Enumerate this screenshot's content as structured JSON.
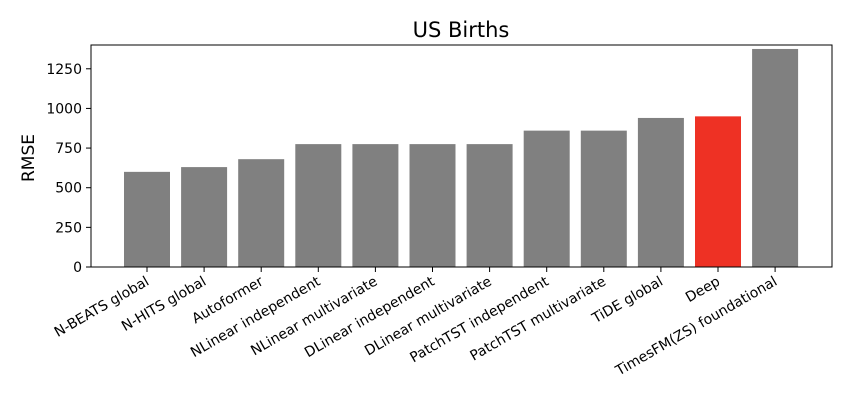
{
  "chart_data": {
    "type": "bar",
    "title": "US Births",
    "xlabel": "",
    "ylabel": "RMSE",
    "ylim": [
      0,
      1400
    ],
    "yticks": [
      0,
      250,
      500,
      750,
      1000,
      1250
    ],
    "categories": [
      "N-BEATS global",
      "N-HITS global",
      "Autoformer",
      "NLinear independent",
      "NLinear multivariate",
      "DLinear independent",
      "DLinear multivariate",
      "PatchTST independent",
      "PatchTST multivariate",
      "TiDE global",
      "Deep",
      "TimesFM(ZS) foundational"
    ],
    "values": [
      600,
      630,
      680,
      775,
      775,
      775,
      775,
      860,
      860,
      940,
      950,
      1375
    ],
    "colors": [
      "#808080",
      "#808080",
      "#808080",
      "#808080",
      "#808080",
      "#808080",
      "#808080",
      "#808080",
      "#808080",
      "#808080",
      "#ee3124",
      "#808080"
    ],
    "grid": false,
    "legend": "none"
  }
}
